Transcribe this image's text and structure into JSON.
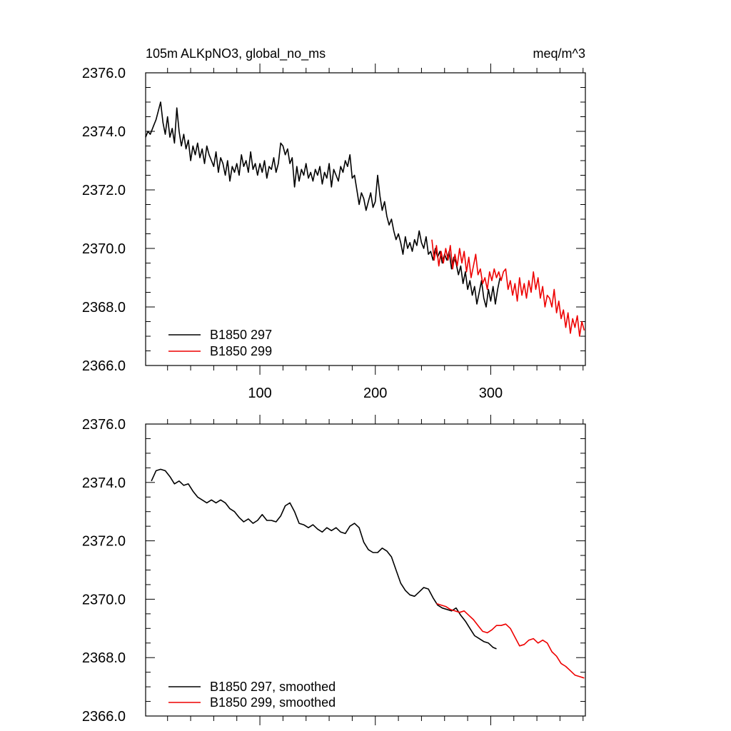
{
  "colors": {
    "run297": "#000000",
    "run299": "#ee0000",
    "axis": "#000000",
    "background": "#ffffff"
  },
  "chart_data": [
    {
      "type": "line",
      "title_left": "105m ALKpNO3, global_no_ms",
      "title_right": "meq/m^3",
      "xlim": [
        1,
        382
      ],
      "ylim": [
        2366.0,
        2376.0
      ],
      "yticks": [
        2366.0,
        2368.0,
        2370.0,
        2372.0,
        2374.0,
        2376.0
      ],
      "ytick_labels": [
        "2366.0",
        "2368.0",
        "2370.0",
        "2372.0",
        "2374.0",
        "2376.0"
      ],
      "xticks": [
        100,
        200,
        300
      ],
      "xtick_labels": [
        "100",
        "200",
        "300"
      ],
      "grid": false,
      "legend_position": "bottom-left",
      "series": [
        {
          "name": "B1850 297",
          "color": "#000000",
          "x": [
            1,
            3,
            5,
            8,
            10,
            12,
            14,
            16,
            18,
            20,
            22,
            24,
            26,
            28,
            30,
            32,
            34,
            36,
            38,
            40,
            42,
            44,
            46,
            48,
            50,
            52,
            54,
            56,
            58,
            60,
            62,
            64,
            66,
            68,
            70,
            72,
            74,
            76,
            78,
            80,
            82,
            84,
            86,
            88,
            90,
            92,
            94,
            96,
            98,
            100,
            102,
            104,
            106,
            108,
            110,
            112,
            114,
            116,
            118,
            120,
            122,
            124,
            126,
            128,
            130,
            132,
            134,
            136,
            138,
            140,
            142,
            144,
            146,
            148,
            150,
            152,
            154,
            156,
            158,
            160,
            162,
            164,
            166,
            168,
            170,
            172,
            174,
            176,
            178,
            180,
            182,
            184,
            186,
            188,
            190,
            192,
            194,
            196,
            198,
            200,
            202,
            204,
            206,
            208,
            210,
            212,
            214,
            216,
            218,
            220,
            222,
            224,
            226,
            228,
            230,
            232,
            234,
            236,
            238,
            240,
            242,
            244,
            246,
            248,
            250,
            252,
            254,
            256,
            258,
            260,
            262,
            264,
            266,
            268,
            270,
            272,
            274,
            276,
            278,
            280,
            282,
            284,
            286,
            288,
            290,
            292,
            294,
            296,
            298,
            300,
            302,
            304,
            306,
            308
          ],
          "y": [
            2373.8,
            2374.0,
            2373.9,
            2374.2,
            2374.4,
            2374.7,
            2375.0,
            2374.3,
            2373.9,
            2374.5,
            2373.8,
            2374.1,
            2373.6,
            2374.8,
            2374.0,
            2373.5,
            2373.9,
            2373.4,
            2373.7,
            2373.0,
            2373.5,
            2373.2,
            2373.6,
            2373.1,
            2373.4,
            2372.9,
            2373.5,
            2373.2,
            2373.0,
            2372.8,
            2373.3,
            2372.6,
            2373.1,
            2372.9,
            2372.5,
            2373.0,
            2372.3,
            2372.8,
            2372.6,
            2372.9,
            2372.5,
            2373.2,
            2372.8,
            2373.0,
            2372.6,
            2373.3,
            2372.7,
            2372.9,
            2372.5,
            2372.9,
            2372.6,
            2373.0,
            2372.4,
            2372.8,
            2372.7,
            2373.1,
            2372.6,
            2372.9,
            2373.6,
            2373.5,
            2373.2,
            2373.4,
            2372.9,
            2373.1,
            2372.1,
            2372.8,
            2372.3,
            2372.7,
            2372.5,
            2372.9,
            2372.4,
            2372.6,
            2372.3,
            2372.7,
            2372.5,
            2372.8,
            2372.2,
            2372.6,
            2372.4,
            2372.9,
            2372.1,
            2372.7,
            2372.5,
            2372.3,
            2372.8,
            2372.6,
            2373.0,
            2372.8,
            2373.2,
            2372.4,
            2372.5,
            2372.0,
            2371.5,
            2371.9,
            2371.7,
            2371.3,
            2371.6,
            2371.9,
            2371.4,
            2371.6,
            2372.5,
            2371.8,
            2371.3,
            2371.6,
            2371.1,
            2370.8,
            2371.0,
            2370.6,
            2370.3,
            2370.5,
            2370.2,
            2369.8,
            2370.4,
            2370.0,
            2370.2,
            2369.9,
            2370.3,
            2370.1,
            2370.6,
            2370.2,
            2370.0,
            2370.4,
            2369.8,
            2369.9,
            2369.6,
            2370.0,
            2369.7,
            2369.9,
            2369.5,
            2369.8,
            2369.6,
            2369.9,
            2369.3,
            2369.7,
            2369.5,
            2369.1,
            2369.4,
            2368.8,
            2369.2,
            2368.6,
            2368.9,
            2368.4,
            2368.7,
            2368.1,
            2368.5,
            2368.9,
            2368.3,
            2368.0,
            2368.6,
            2368.2,
            2368.7,
            2368.1,
            2368.6,
            2369.0
          ]
        },
        {
          "name": "B1850 299",
          "color": "#ee0000",
          "x": [
            249,
            251,
            253,
            255,
            257,
            259,
            261,
            263,
            265,
            267,
            269,
            271,
            273,
            275,
            277,
            279,
            281,
            283,
            285,
            287,
            289,
            291,
            293,
            295,
            297,
            299,
            301,
            303,
            305,
            307,
            309,
            311,
            313,
            315,
            317,
            319,
            321,
            323,
            325,
            327,
            329,
            331,
            333,
            335,
            337,
            339,
            341,
            343,
            345,
            347,
            349,
            351,
            353,
            355,
            357,
            359,
            361,
            363,
            365,
            367,
            369,
            371,
            373,
            375,
            377,
            379,
            381
          ],
          "y": [
            2370.3,
            2369.6,
            2370.1,
            2369.4,
            2369.9,
            2369.5,
            2370.0,
            2369.6,
            2370.1,
            2369.3,
            2369.8,
            2369.4,
            2370.0,
            2369.5,
            2369.9,
            2369.2,
            2369.7,
            2369.0,
            2369.4,
            2369.8,
            2369.1,
            2369.3,
            2368.8,
            2369.0,
            2368.6,
            2369.2,
            2368.9,
            2369.3,
            2369.0,
            2369.2,
            2368.9,
            2369.2,
            2369.3,
            2368.6,
            2368.9,
            2368.4,
            2368.8,
            2368.2,
            2369.0,
            2368.4,
            2368.8,
            2368.3,
            2368.9,
            2368.5,
            2369.2,
            2368.6,
            2369.0,
            2368.3,
            2368.7,
            2368.0,
            2368.4,
            2368.3,
            2368.0,
            2368.6,
            2367.8,
            2368.2,
            2367.6,
            2367.9,
            2367.3,
            2367.8,
            2367.1,
            2367.6,
            2367.3,
            2367.7,
            2367.0,
            2367.5,
            2367.2
          ]
        }
      ]
    },
    {
      "type": "line",
      "xlim": [
        1,
        382
      ],
      "ylim": [
        2366.0,
        2376.0
      ],
      "yticks": [
        2366.0,
        2368.0,
        2370.0,
        2372.0,
        2374.0,
        2376.0
      ],
      "ytick_labels": [
        "2366.0",
        "2368.0",
        "2370.0",
        "2372.0",
        "2374.0",
        "2376.0"
      ],
      "xticks": [
        100,
        200,
        300
      ],
      "grid": false,
      "legend_position": "bottom-left",
      "series": [
        {
          "name": "B1850 297, smoothed",
          "color": "#000000",
          "x": [
            6,
            10,
            14,
            18,
            22,
            26,
            30,
            34,
            38,
            42,
            46,
            50,
            54,
            58,
            62,
            66,
            70,
            74,
            78,
            82,
            86,
            90,
            94,
            98,
            102,
            106,
            110,
            114,
            118,
            122,
            126,
            130,
            134,
            138,
            142,
            146,
            150,
            154,
            158,
            162,
            166,
            170,
            174,
            178,
            182,
            186,
            190,
            194,
            198,
            202,
            206,
            210,
            214,
            218,
            222,
            226,
            230,
            234,
            238,
            242,
            246,
            250,
            254,
            258,
            262,
            266,
            270,
            274,
            278,
            282,
            286,
            290,
            294,
            298,
            302,
            305
          ],
          "y": [
            2374.05,
            2374.4,
            2374.45,
            2374.4,
            2374.2,
            2373.95,
            2374.05,
            2373.9,
            2373.95,
            2373.7,
            2373.5,
            2373.4,
            2373.3,
            2373.4,
            2373.3,
            2373.4,
            2373.3,
            2373.1,
            2373.0,
            2372.8,
            2372.65,
            2372.75,
            2372.6,
            2372.7,
            2372.9,
            2372.7,
            2372.7,
            2372.65,
            2372.85,
            2373.2,
            2373.3,
            2373.0,
            2372.6,
            2372.55,
            2372.45,
            2372.55,
            2372.4,
            2372.3,
            2372.45,
            2372.35,
            2372.45,
            2372.3,
            2372.25,
            2372.5,
            2372.6,
            2372.45,
            2371.95,
            2371.7,
            2371.6,
            2371.6,
            2371.75,
            2371.65,
            2371.45,
            2371.0,
            2370.55,
            2370.3,
            2370.15,
            2370.1,
            2370.25,
            2370.4,
            2370.35,
            2370.05,
            2369.8,
            2369.7,
            2369.65,
            2369.6,
            2369.7,
            2369.45,
            2369.25,
            2369.0,
            2368.75,
            2368.65,
            2368.55,
            2368.5,
            2368.35,
            2368.3
          ]
        },
        {
          "name": "B1850 299, smoothed",
          "color": "#ee0000",
          "x": [
            253,
            257,
            261,
            265,
            269,
            273,
            277,
            281,
            285,
            289,
            293,
            297,
            301,
            305,
            309,
            313,
            317,
            321,
            325,
            329,
            333,
            337,
            341,
            345,
            349,
            353,
            357,
            361,
            365,
            369,
            373,
            377,
            381
          ],
          "y": [
            2369.85,
            2369.8,
            2369.75,
            2369.65,
            2369.6,
            2369.55,
            2369.6,
            2369.45,
            2369.3,
            2369.1,
            2368.9,
            2368.85,
            2368.95,
            2369.1,
            2369.1,
            2369.15,
            2369.0,
            2368.7,
            2368.4,
            2368.45,
            2368.6,
            2368.65,
            2368.5,
            2368.6,
            2368.5,
            2368.2,
            2368.05,
            2367.8,
            2367.7,
            2367.55,
            2367.4,
            2367.35,
            2367.3
          ]
        }
      ]
    }
  ]
}
